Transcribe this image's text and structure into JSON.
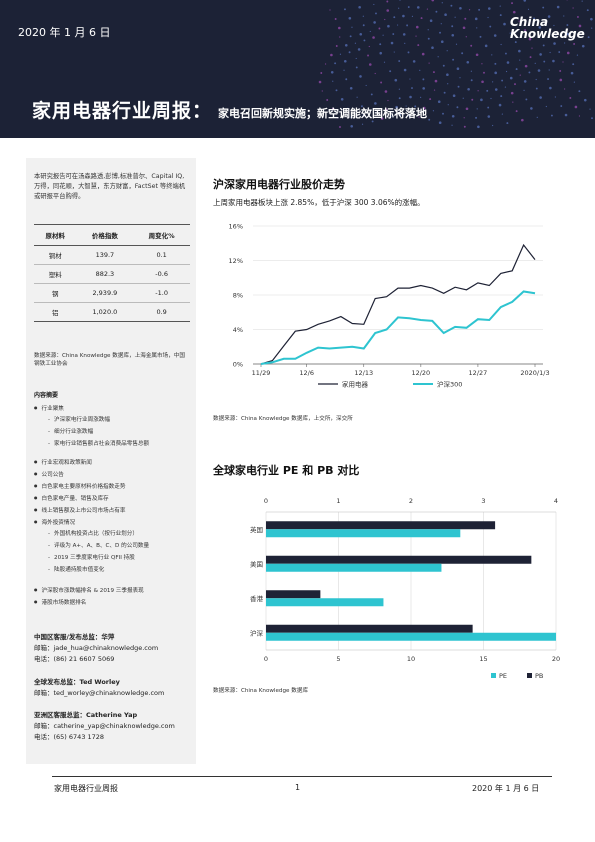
{
  "header": {
    "date": "2020 年 1 月 6 日",
    "logo_line1": "China",
    "logo_line2": "Knowledge",
    "title_main": "家用电器行业周报：",
    "title_sub": "家电召回新规实施；新空调能效国标将落地"
  },
  "sidebar": {
    "intro": "本研究报告可在汤森路透,彭博,标准普尔、Capital IQ,万得，同花顺，大智慧，东方财富，FactSet 等终端机或研报平台购得。",
    "table": {
      "headers": [
        "原材料",
        "价格指数",
        "周变化%"
      ],
      "rows": [
        [
          "铜材",
          "139.7",
          "0.1"
        ],
        [
          "塑料",
          "882.3",
          "-0.6"
        ],
        [
          "钢",
          "2,939.9",
          "-1.0"
        ],
        [
          "铝",
          "1,020.0",
          "0.9"
        ]
      ]
    },
    "source": "数据来源：China Knowledge 数据库，上海金属市场，中国钢铁工业协会",
    "toc_title": "内容摘要",
    "toc_group1": [
      {
        "type": "b",
        "text": "行业聚焦"
      },
      {
        "type": "s",
        "text": "沪深家电行业周涨跌幅"
      },
      {
        "type": "s",
        "text": "细分行业涨跌幅"
      },
      {
        "type": "s",
        "text": "家电行业销售额占社会消费品零售总额"
      }
    ],
    "toc_group2": [
      {
        "type": "b",
        "text": "行业宏观和政策新闻"
      },
      {
        "type": "b",
        "text": "公司公告"
      },
      {
        "type": "b",
        "text": "白色家电主要原材料价格指数走势"
      },
      {
        "type": "b",
        "text": "白色家电产量、销售及库存"
      },
      {
        "type": "b",
        "text": "线上销售额及上市公司市场占有率"
      },
      {
        "type": "b",
        "text": "海外投资情况"
      },
      {
        "type": "s",
        "text": "外国机构投资占比（按行业划分）"
      },
      {
        "type": "s",
        "text": "评级为 A+、A、B、C、D 的公司数量"
      },
      {
        "type": "s",
        "text": "2019 三季度家电行业 QFII 持股"
      },
      {
        "type": "s",
        "text": "陆股通持股市值变化"
      }
    ],
    "toc_group3": [
      {
        "type": "b",
        "text": "沪深股市涨跌幅排名 & 2019 三季报表现"
      },
      {
        "type": "b",
        "text": "港股市场数据排名"
      }
    ],
    "contacts": [
      {
        "title": "中国区客服/发布总监：华萍",
        "lines": [
          "邮箱：jade_hua@chinaknowledge.com",
          "电话：(86) 21 6607 5069"
        ]
      },
      {
        "title": "全球发布总监：Ted Worley",
        "lines": [
          "邮箱：ted_worley@chinaknowledge.com"
        ]
      },
      {
        "title": "亚洲区客服总监：Catherine Yap",
        "lines": [
          "邮箱：catherine_yap@chinaknowledge.com",
          "电话：(65) 6743 1728"
        ]
      }
    ]
  },
  "section1": {
    "title": "沪深家用电器行业股价走势",
    "desc": "上周家用电器板块上涨 2.85%，低于沪深 300 3.06%的涨幅。",
    "source": "数据来源：China Knowledge 数据库，上交所，深交所"
  },
  "section2": {
    "title": "全球家电行业 PE 和 PB 对比",
    "source": "数据来源：China Knowledge 数据库"
  },
  "footer": {
    "left": "家用电器行业周报",
    "page": "1",
    "right": "2020 年 1 月 6 日"
  },
  "colors": {
    "banner": "#1c2236",
    "dark_series": "#1e2235",
    "teal_series": "#2ec4d0"
  },
  "chart_data": [
    {
      "type": "line",
      "title": "",
      "x_tick_labels": [
        "11/29",
        "12/6",
        "12/13",
        "12/20",
        "12/27",
        "2020/1/3"
      ],
      "ylim": [
        0,
        16
      ],
      "y_ticks": [
        0,
        4,
        8,
        12,
        16
      ],
      "y_tick_labels": [
        "0%",
        "4%",
        "8%",
        "12%",
        "16%"
      ],
      "legend_position": "bottom",
      "series": [
        {
          "name": "家用电器",
          "color": "#1e2235",
          "values": [
            0,
            0.4,
            2.1,
            3.8,
            4.0,
            4.6,
            5.0,
            5.5,
            4.7,
            4.6,
            7.6,
            7.8,
            8.8,
            8.8,
            9.1,
            8.8,
            8.2,
            8.9,
            8.6,
            9.4,
            9.1,
            10.5,
            10.8,
            13.8,
            12.1
          ]
        },
        {
          "name": "沪深300",
          "color": "#2ec4d0",
          "values": [
            0,
            0.2,
            0.6,
            0.6,
            1.3,
            1.9,
            1.8,
            1.9,
            2.0,
            1.8,
            3.6,
            4.0,
            5.4,
            5.3,
            5.1,
            5.0,
            3.6,
            4.3,
            4.2,
            5.2,
            5.1,
            6.6,
            7.2,
            8.4,
            8.2
          ]
        }
      ]
    },
    {
      "type": "bar",
      "orientation": "horizontal",
      "title": "",
      "categories": [
        "英国",
        "美国",
        "香港",
        "沪深"
      ],
      "legend_position": "bottom-right",
      "pb_axis": {
        "range": [
          0,
          4
        ],
        "ticks": [
          0,
          1,
          2,
          3,
          4
        ],
        "position": "top"
      },
      "pe_axis": {
        "range": [
          0,
          20
        ],
        "ticks": [
          0,
          5,
          10,
          15,
          20
        ],
        "position": "bottom"
      },
      "series": [
        {
          "name": "PE",
          "color": "#2ec4d0",
          "values": [
            13.4,
            12.1,
            8.1,
            20.0
          ]
        },
        {
          "name": "PB",
          "color": "#1e2235",
          "values": [
            3.16,
            3.66,
            0.75,
            2.85
          ]
        }
      ]
    }
  ]
}
